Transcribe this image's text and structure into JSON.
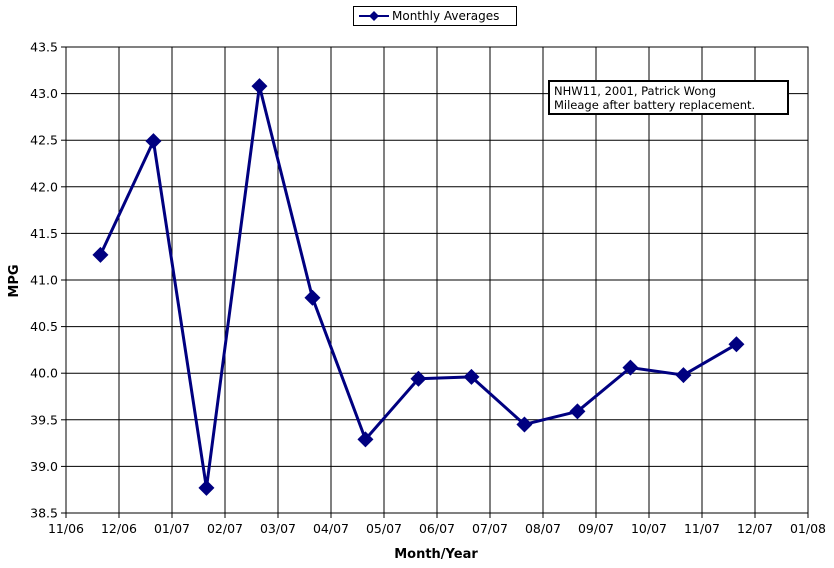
{
  "chart_data": {
    "type": "line",
    "title": "",
    "xlabel": "Month/Year",
    "ylabel": "MPG",
    "x_tick_labels": [
      "11/06",
      "12/06",
      "01/07",
      "02/07",
      "03/07",
      "04/07",
      "05/07",
      "06/07",
      "07/07",
      "08/07",
      "09/07",
      "10/07",
      "11/07",
      "12/07",
      "01/08"
    ],
    "y_tick_labels": [
      "38.5",
      "39.0",
      "39.5",
      "40.0",
      "40.5",
      "41.0",
      "41.5",
      "42.0",
      "42.5",
      "43.0",
      "43.5"
    ],
    "ylim": [
      38.5,
      43.5
    ],
    "xlim": [
      "11/06",
      "01/08"
    ],
    "grid": true,
    "legend": "top-center",
    "series": [
      {
        "name": "Monthly Averages",
        "color": "#000080",
        "marker": "diamond",
        "x": [
          "11/06",
          "12/06",
          "01/07",
          "02/07",
          "03/07",
          "04/07",
          "05/07",
          "06/07",
          "07/07",
          "08/07",
          "09/07",
          "10/07",
          "11/07"
        ],
        "values": [
          41.27,
          42.49,
          38.77,
          43.08,
          40.81,
          39.29,
          39.94,
          39.96,
          39.45,
          39.59,
          40.06,
          39.98,
          40.31
        ]
      }
    ],
    "annotation": {
      "line1": "NHW11, 2001, Patrick Wong",
      "line2": "Mileage after battery replacement."
    }
  }
}
